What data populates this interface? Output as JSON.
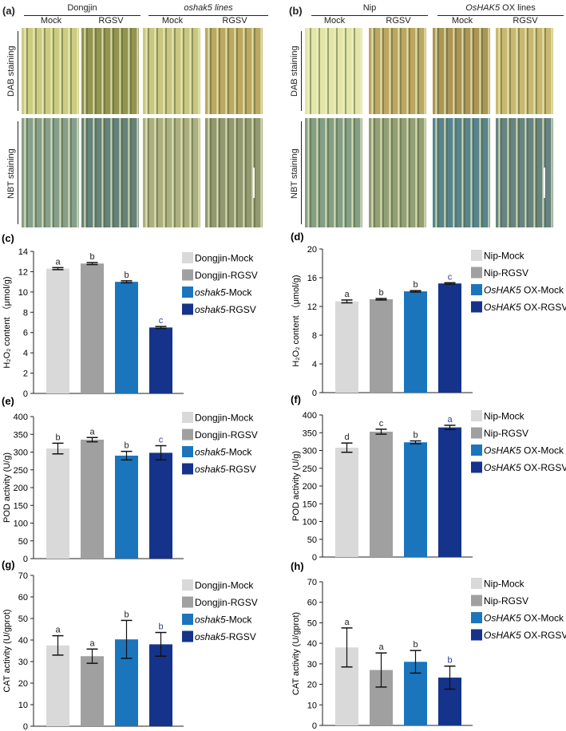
{
  "panels": {
    "a": {
      "label": "(a)",
      "groups": [
        "Dongjin",
        "oshak5 lines"
      ],
      "columns": [
        "Mock",
        "RGSV",
        "Mock",
        "RGSV"
      ],
      "rows": [
        "DAB staining",
        "NBT staining"
      ],
      "tints": [
        [
          "#c9c97a",
          "#8e8e48",
          "#c6c47a",
          "#b8a458"
        ],
        [
          "#7f9b86",
          "#5d7c74",
          "#a8ac7a",
          "#8c936a"
        ]
      ]
    },
    "b": {
      "label": "(b)",
      "groups": [
        "Nip",
        "OsHAK5 OX lines"
      ],
      "columns": [
        "Mock",
        "RGSV",
        "Mock",
        "RGSV"
      ],
      "rows": [
        "DAB staining",
        "NBT staining"
      ],
      "tints": [
        [
          "#e2e4a4",
          "#b8a25a",
          "#a8904c",
          "#c6b468"
        ],
        [
          "#7d9a80",
          "#8d9a70",
          "#4f7e88",
          "#5f7e7c"
        ]
      ]
    }
  },
  "colors": [
    "#d9d9d9",
    "#a0a0a0",
    "#1b75bc",
    "#15338a"
  ],
  "letter_highlight_color": "#2b3a8f",
  "chart_data": [
    {
      "panel": "(c)",
      "type": "bar",
      "ylabel": "H₂O₂ content （μmol/g)",
      "ylim": [
        0,
        14
      ],
      "yticks": [
        0,
        2,
        4,
        6,
        8,
        10,
        12,
        14
      ],
      "categories": [
        "Dongjin-Mock",
        "Dongjin-RGSV",
        "oshak5-Mock",
        "oshak5-RGSV"
      ],
      "values": [
        12.3,
        12.8,
        11.0,
        6.5
      ],
      "errors": [
        0.1,
        0.1,
        0.1,
        0.1
      ],
      "letters": [
        "a",
        "b",
        "b",
        "c"
      ],
      "legend": "right"
    },
    {
      "panel": "(d)",
      "type": "bar",
      "ylabel": "H₂O₂ content （μmol/g)",
      "ylim": [
        0,
        20
      ],
      "yticks": [
        0,
        4,
        8,
        12,
        16,
        20
      ],
      "categories": [
        "Nip-Mock",
        "Nip-RGSV",
        "OsHAK5 OX-Mock",
        "OsHAK5 OX-RGSV"
      ],
      "values": [
        12.7,
        13.0,
        14.1,
        15.2
      ],
      "errors": [
        0.2,
        0.1,
        0.1,
        0.1
      ],
      "letters": [
        "a",
        "b",
        "b",
        "c"
      ],
      "legend": "right"
    },
    {
      "panel": "(e)",
      "type": "bar",
      "ylabel": "POD activity (U/g)",
      "ylim": [
        0,
        400
      ],
      "yticks": [
        0,
        50,
        100,
        150,
        200,
        250,
        300,
        350,
        400
      ],
      "categories": [
        "Dongjin-Mock",
        "Dongjin-RGSV",
        "oshak5-Mock",
        "oshak5-RGSV"
      ],
      "values": [
        310,
        335,
        290,
        298
      ],
      "errors": [
        15,
        6,
        12,
        20
      ],
      "letters": [
        "b",
        "a",
        "b",
        "c"
      ],
      "legend": "right"
    },
    {
      "panel": "(f)",
      "type": "bar",
      "ylabel": "POD activity (U/g)",
      "ylim": [
        0,
        400
      ],
      "yticks": [
        0,
        50,
        100,
        150,
        200,
        250,
        300,
        350,
        400
      ],
      "categories": [
        "Nip-Mock",
        "Nip-RGSV",
        "OsHAK5 OX-Mock",
        "OsHAK5 OX-RGSV"
      ],
      "values": [
        308,
        353,
        323,
        365
      ],
      "errors": [
        13,
        7,
        4,
        6
      ],
      "letters": [
        "d",
        "c",
        "b",
        "a"
      ],
      "legend": "right"
    },
    {
      "panel": "(g)",
      "type": "bar",
      "ylabel": "CAT activity (U/gprot)",
      "ylim": [
        0,
        70
      ],
      "yticks": [
        0,
        10,
        20,
        30,
        40,
        50,
        60,
        70
      ],
      "categories": [
        "Dongjin-Mock",
        "Dongjin-RGSV",
        "oshak5-Mock",
        "oshak5-RGSV"
      ],
      "values": [
        37.5,
        32.5,
        40.3,
        38.0
      ],
      "errors": [
        4.5,
        3.3,
        8.8,
        5.5
      ],
      "letters": [
        "a",
        "a",
        "b",
        "b"
      ],
      "legend": "right"
    },
    {
      "panel": "(h)",
      "type": "bar",
      "ylabel": "CAT activity (U/gprot)",
      "ylim": [
        0,
        70
      ],
      "yticks": [
        0,
        10,
        20,
        30,
        40,
        50,
        60,
        70
      ],
      "categories": [
        "Nip-Mock",
        "Nip-RGSV",
        "OsHAK5 OX-Mock",
        "OsHAK5 OX-RGSV"
      ],
      "values": [
        38.0,
        27.0,
        31.0,
        23.3
      ],
      "errors": [
        9.5,
        8.3,
        5.5,
        5.6
      ],
      "letters": [
        "a",
        "a",
        "b",
        "b"
      ],
      "legend": "right"
    }
  ]
}
